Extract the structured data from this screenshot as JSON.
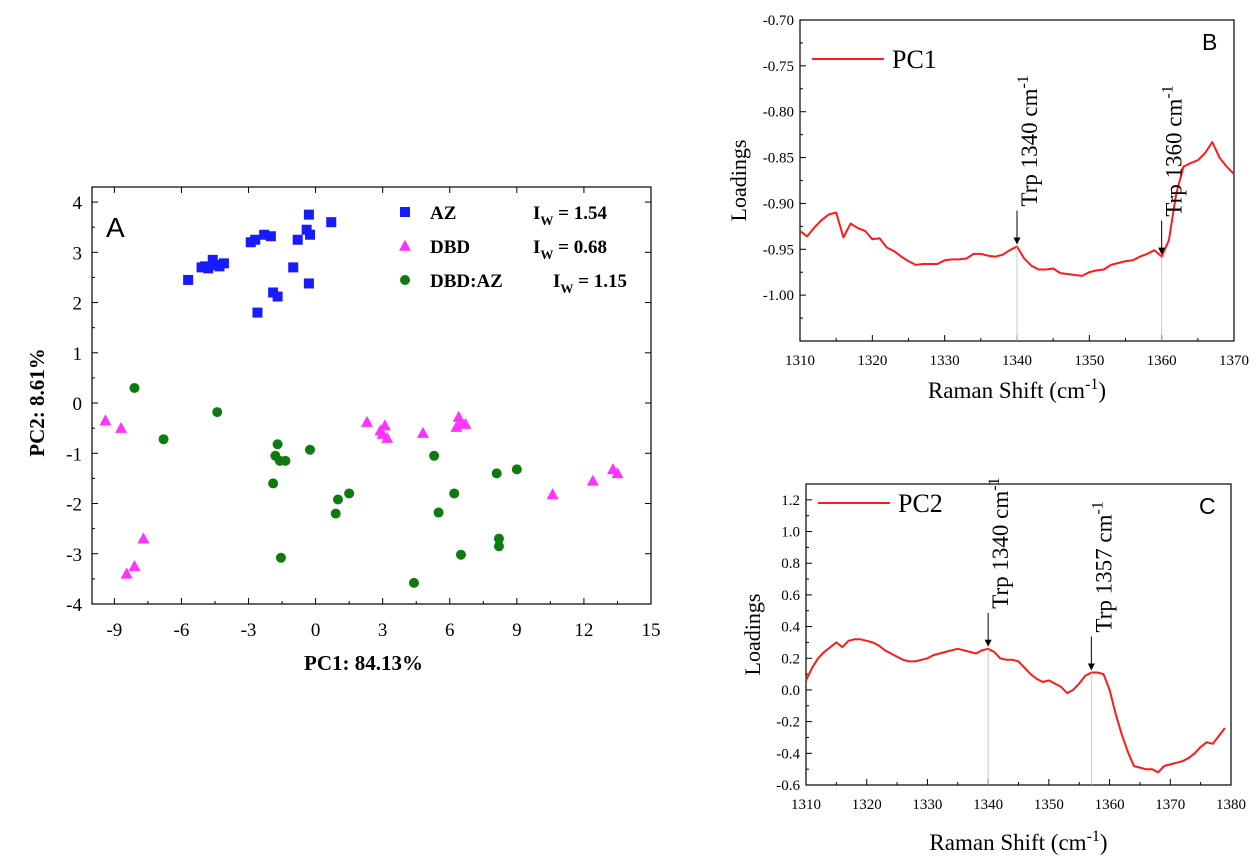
{
  "chart_data": [
    {
      "type": "scatter",
      "panel_label": "A",
      "xlabel": "PC1: 84.13%",
      "ylabel": "PC2: 8.61%",
      "xlim": [
        -10,
        15
      ],
      "ylim": [
        -4,
        4.3
      ],
      "xticks": [
        "-9",
        "-6",
        "-3",
        "0",
        "3",
        "6",
        "9",
        "12",
        "15"
      ],
      "yticks": [
        "4",
        "3",
        "2",
        "1",
        "0",
        "-1",
        "-2",
        "-3",
        "-4"
      ],
      "series": [
        {
          "name": "AZ",
          "iw_label": "I",
          "iw_sub": "W",
          "iw_value": " =  1.54",
          "color": "#1a1aff",
          "marker": "square",
          "points": [
            [
              -5.7,
              2.45
            ],
            [
              -5.1,
              2.7
            ],
            [
              -4.95,
              2.72
            ],
            [
              -4.8,
              2.68
            ],
            [
              -4.6,
              2.85
            ],
            [
              -4.5,
              2.75
            ],
            [
              -4.3,
              2.72
            ],
            [
              -4.1,
              2.78
            ],
            [
              -2.9,
              3.2
            ],
            [
              -2.7,
              3.25
            ],
            [
              -2.3,
              3.35
            ],
            [
              -2.0,
              3.32
            ],
            [
              -1.9,
              2.2
            ],
            [
              -1.7,
              2.12
            ],
            [
              -1.0,
              2.7
            ],
            [
              -0.8,
              3.25
            ],
            [
              -0.4,
              3.45
            ],
            [
              -0.3,
              3.75
            ],
            [
              -0.25,
              3.35
            ],
            [
              -0.3,
              2.38
            ],
            [
              0.7,
              3.6
            ],
            [
              -2.6,
              1.8
            ]
          ]
        },
        {
          "name": "DBD",
          "iw_label": "I",
          "iw_sub": "W",
          "iw_value": " =  0.68",
          "color": "#ff33ff",
          "marker": "triangle",
          "points": [
            [
              -9.4,
              -0.35
            ],
            [
              -8.7,
              -0.5
            ],
            [
              -7.7,
              -2.7
            ],
            [
              -8.1,
              -3.25
            ],
            [
              -8.45,
              -3.4
            ],
            [
              2.3,
              -0.38
            ],
            [
              2.9,
              -0.55
            ],
            [
              3.1,
              -0.45
            ],
            [
              3.0,
              -0.62
            ],
            [
              3.2,
              -0.7
            ],
            [
              4.8,
              -0.6
            ],
            [
              6.3,
              -0.48
            ],
            [
              6.4,
              -0.28
            ],
            [
              6.5,
              -0.4
            ],
            [
              6.7,
              -0.42
            ],
            [
              10.6,
              -1.82
            ],
            [
              12.4,
              -1.55
            ],
            [
              13.3,
              -1.32
            ],
            [
              13.5,
              -1.4
            ]
          ]
        },
        {
          "name": "DBD:AZ",
          "iw_label": "I",
          "iw_sub": "W",
          "iw_value": " =  1.15",
          "color": "#0f7a0f",
          "marker": "circle",
          "points": [
            [
              -8.1,
              0.3
            ],
            [
              -6.8,
              -0.72
            ],
            [
              -4.4,
              -0.18
            ],
            [
              -1.8,
              -1.05
            ],
            [
              -1.7,
              -0.82
            ],
            [
              -1.6,
              -1.15
            ],
            [
              -1.35,
              -1.15
            ],
            [
              -1.9,
              -1.6
            ],
            [
              -1.55,
              -3.08
            ],
            [
              -0.25,
              -0.93
            ],
            [
              1.0,
              -1.92
            ],
            [
              0.9,
              -2.2
            ],
            [
              1.5,
              -1.8
            ],
            [
              4.4,
              -3.58
            ],
            [
              5.3,
              -1.05
            ],
            [
              5.5,
              -2.18
            ],
            [
              6.2,
              -1.8
            ],
            [
              6.5,
              -3.02
            ],
            [
              8.1,
              -1.4
            ],
            [
              8.2,
              -2.7
            ],
            [
              8.2,
              -2.85
            ],
            [
              9.0,
              -1.32
            ]
          ]
        }
      ]
    },
    {
      "type": "line",
      "panel_label": "B",
      "series_name": "PC1",
      "color": "#ff1a1a",
      "xlabel_main": "Raman Shift (cm",
      "xlabel_sup": "-1",
      "xlabel_close": ")",
      "ylabel": "Loadings",
      "xlim": [
        1310,
        1370
      ],
      "ylim": [
        -1.05,
        -0.7
      ],
      "xticks": [
        "1310",
        "1320",
        "1330",
        "1340",
        "1350",
        "1360",
        "1370"
      ],
      "yticks": [
        "-0.70",
        "-0.75",
        "-0.80",
        "-0.85",
        "-0.90",
        "-0.95",
        "-1.00"
      ],
      "annotations": [
        {
          "text_main": "Trp  1340 cm",
          "text_sup": "-1",
          "x": 1340,
          "y": -0.947
        },
        {
          "text_main": "Trp  1360 cm",
          "text_sup": "-1",
          "x": 1360,
          "y": -0.958
        }
      ],
      "x": [
        1310,
        1311,
        1312,
        1313,
        1314,
        1315,
        1316,
        1317,
        1318,
        1319,
        1320,
        1321,
        1322,
        1323,
        1324,
        1325,
        1326,
        1327,
        1328,
        1329,
        1330,
        1331,
        1332,
        1333,
        1334,
        1335,
        1336,
        1337,
        1338,
        1339,
        1340,
        1341,
        1342,
        1343,
        1344,
        1345,
        1346,
        1347,
        1348,
        1349,
        1350,
        1351,
        1352,
        1353,
        1354,
        1355,
        1356,
        1357,
        1358,
        1359,
        1360,
        1361,
        1362,
        1363,
        1364,
        1365,
        1366,
        1367,
        1368,
        1369,
        1370
      ],
      "y": [
        -0.93,
        -0.936,
        -0.926,
        -0.918,
        -0.912,
        -0.91,
        -0.937,
        -0.922,
        -0.927,
        -0.93,
        -0.939,
        -0.938,
        -0.948,
        -0.952,
        -0.958,
        -0.963,
        -0.967,
        -0.966,
        -0.966,
        -0.966,
        -0.962,
        -0.961,
        -0.961,
        -0.96,
        -0.955,
        -0.955,
        -0.957,
        -0.958,
        -0.956,
        -0.951,
        -0.947,
        -0.96,
        -0.968,
        -0.972,
        -0.972,
        -0.971,
        -0.976,
        -0.977,
        -0.978,
        -0.979,
        -0.975,
        -0.973,
        -0.972,
        -0.967,
        -0.965,
        -0.963,
        -0.962,
        -0.958,
        -0.955,
        -0.951,
        -0.958,
        -0.94,
        -0.89,
        -0.86,
        -0.856,
        -0.853,
        -0.845,
        -0.833,
        -0.85,
        -0.86,
        -0.868
      ]
    },
    {
      "type": "line",
      "panel_label": "C",
      "series_name": "PC2",
      "color": "#ff1a1a",
      "xlabel_main": "Raman Shift (cm",
      "xlabel_sup": "-1",
      "xlabel_close": ")",
      "ylabel": "Loadings",
      "xlim": [
        1310,
        1380
      ],
      "ylim": [
        -0.6,
        1.3
      ],
      "xticks": [
        "1310",
        "1320",
        "1330",
        "1340",
        "1350",
        "1360",
        "1370",
        "1380"
      ],
      "yticks": [
        "1.2",
        "1.0",
        "0.8",
        "0.6",
        "0.4",
        "0.2",
        "0.0",
        "-0.2",
        "-0.4",
        "-0.6"
      ],
      "annotations": [
        {
          "text_main": "Trp  1340 cm",
          "text_sup": "-1",
          "x": 1340,
          "y": 0.26
        },
        {
          "text_main": "Trp  1357 cm",
          "text_sup": "-1",
          "x": 1357,
          "y": 0.11
        }
      ],
      "x": [
        1310,
        1311,
        1312,
        1313,
        1314,
        1315,
        1316,
        1317,
        1318,
        1319,
        1320,
        1321,
        1322,
        1323,
        1324,
        1325,
        1326,
        1327,
        1328,
        1329,
        1330,
        1331,
        1332,
        1333,
        1334,
        1335,
        1336,
        1337,
        1338,
        1339,
        1340,
        1341,
        1342,
        1343,
        1344,
        1345,
        1346,
        1347,
        1348,
        1349,
        1350,
        1351,
        1352,
        1353,
        1354,
        1355,
        1356,
        1357,
        1358,
        1359,
        1360,
        1361,
        1362,
        1363,
        1364,
        1365,
        1366,
        1367,
        1368,
        1369,
        1370,
        1371,
        1372,
        1373,
        1374,
        1375,
        1376,
        1377,
        1378,
        1379
      ],
      "y": [
        0.06,
        0.14,
        0.2,
        0.24,
        0.27,
        0.3,
        0.27,
        0.31,
        0.32,
        0.32,
        0.31,
        0.3,
        0.28,
        0.25,
        0.23,
        0.21,
        0.19,
        0.18,
        0.18,
        0.19,
        0.2,
        0.22,
        0.23,
        0.24,
        0.25,
        0.26,
        0.25,
        0.24,
        0.23,
        0.25,
        0.26,
        0.24,
        0.2,
        0.19,
        0.19,
        0.18,
        0.14,
        0.1,
        0.07,
        0.05,
        0.06,
        0.04,
        0.02,
        -0.02,
        0.0,
        0.04,
        0.09,
        0.11,
        0.11,
        0.1,
        0.0,
        -0.15,
        -0.28,
        -0.39,
        -0.48,
        -0.49,
        -0.5,
        -0.5,
        -0.52,
        -0.48,
        -0.47,
        -0.46,
        -0.45,
        -0.43,
        -0.4,
        -0.36,
        -0.33,
        -0.34,
        -0.29,
        -0.24
      ]
    }
  ]
}
